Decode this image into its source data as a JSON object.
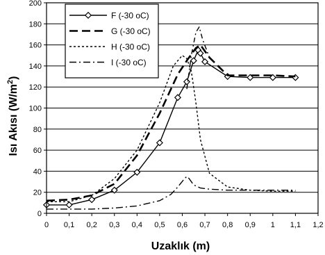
{
  "chart_data": {
    "type": "line",
    "xlabel": "Uzaklık (m)",
    "ylabel": "Isı Akısı (W/m",
    "ylabel_sup": "2",
    "ylabel_close": ")",
    "xlim": [
      0,
      1.2
    ],
    "ylim": [
      0,
      200
    ],
    "x_ticks": [
      "0",
      "0,1",
      "0,2",
      "0,3",
      "0,4",
      "0,5",
      "0,6",
      "0,7",
      "0,8",
      "0,9",
      "1",
      "1,1",
      "1,2"
    ],
    "y_ticks": [
      "0",
      "20",
      "40",
      "60",
      "80",
      "100",
      "120",
      "140",
      "160",
      "180",
      "200"
    ],
    "grid": "horizontal",
    "legend_position": "top-left",
    "series": [
      {
        "name": "F (-30 oC)",
        "style": "solid-diamond",
        "points": [
          [
            0,
            8
          ],
          [
            0.1,
            8
          ],
          [
            0.2,
            13
          ],
          [
            0.3,
            22
          ],
          [
            0.4,
            39
          ],
          [
            0.5,
            67
          ],
          [
            0.58,
            110
          ],
          [
            0.62,
            125
          ],
          [
            0.65,
            145
          ],
          [
            0.67,
            155
          ],
          [
            0.68,
            152
          ],
          [
            0.7,
            144
          ],
          [
            0.8,
            130
          ],
          [
            0.9,
            129
          ],
          [
            1.0,
            129
          ],
          [
            1.1,
            129
          ]
        ]
      },
      {
        "name": "G (-30 oC)",
        "style": "long-dash",
        "points": [
          [
            0,
            12
          ],
          [
            0.1,
            13
          ],
          [
            0.2,
            17
          ],
          [
            0.3,
            28
          ],
          [
            0.4,
            55
          ],
          [
            0.5,
            95
          ],
          [
            0.58,
            132
          ],
          [
            0.62,
            145
          ],
          [
            0.66,
            157
          ],
          [
            0.68,
            160
          ],
          [
            0.72,
            148
          ],
          [
            0.8,
            131
          ],
          [
            0.9,
            131
          ],
          [
            1.0,
            131
          ],
          [
            1.1,
            130
          ]
        ]
      },
      {
        "name": "H (-30 oC)",
        "style": "short-dash",
        "points": [
          [
            0,
            11
          ],
          [
            0.1,
            11
          ],
          [
            0.2,
            17
          ],
          [
            0.3,
            33
          ],
          [
            0.4,
            60
          ],
          [
            0.5,
            105
          ],
          [
            0.56,
            140
          ],
          [
            0.6,
            150
          ],
          [
            0.62,
            147
          ],
          [
            0.64,
            135
          ],
          [
            0.66,
            105
          ],
          [
            0.68,
            70
          ],
          [
            0.72,
            38
          ],
          [
            0.8,
            25
          ],
          [
            0.9,
            22
          ],
          [
            1.0,
            21
          ],
          [
            1.1,
            21
          ]
        ]
      },
      {
        "name": "I (-30 oC)",
        "style": "dash-dot",
        "points": [
          [
            0,
            4
          ],
          [
            0.1,
            4
          ],
          [
            0.2,
            4
          ],
          [
            0.3,
            5
          ],
          [
            0.4,
            7
          ],
          [
            0.5,
            12
          ],
          [
            0.55,
            18
          ],
          [
            0.58,
            25
          ],
          [
            0.61,
            33
          ],
          [
            0.62,
            35
          ],
          [
            0.63,
            33
          ],
          [
            0.65,
            27
          ],
          [
            0.68,
            24
          ],
          [
            0.72,
            23
          ],
          [
            0.8,
            22
          ],
          [
            0.9,
            22
          ],
          [
            1.0,
            22
          ],
          [
            1.1,
            22
          ]
        ]
      },
      {
        "name": "",
        "style": "spike",
        "points": [
          [
            0.62,
            118
          ],
          [
            0.64,
            150
          ],
          [
            0.66,
            172
          ],
          [
            0.675,
            177
          ],
          [
            0.69,
            165
          ],
          [
            0.72,
            148
          ]
        ]
      }
    ]
  }
}
